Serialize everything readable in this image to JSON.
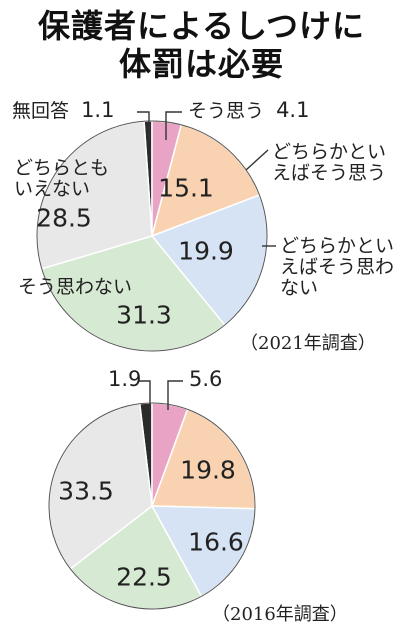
{
  "title_line1": "保護者によるしつけに",
  "title_line2": "体罰は必要",
  "labels": {
    "no_answer": "無回答",
    "agree": "そう思う",
    "somewhat_agree": "どちらかといえばそう思う",
    "somewhat_disagree": "どちらかといえばそう思わない",
    "disagree": "そう思わない",
    "neither": "どちらともいえない"
  },
  "colors": {
    "no_answer": "#2b2b2b",
    "agree": "#e9a3c4",
    "somewhat_agree": "#f9d3b1",
    "somewhat_disagree": "#d6e3f4",
    "disagree": "#d6e9d2",
    "neither": "#e8e8e8"
  },
  "chart_data": [
    {
      "type": "pie",
      "title": "（2021年調査）",
      "slices": [
        {
          "key": "no_answer",
          "value": 1.1
        },
        {
          "key": "agree",
          "value": 4.1
        },
        {
          "key": "somewhat_agree",
          "value": 15.1
        },
        {
          "key": "somewhat_disagree",
          "value": 19.9
        },
        {
          "key": "disagree",
          "value": 31.3
        },
        {
          "key": "neither",
          "value": 28.5
        }
      ]
    },
    {
      "type": "pie",
      "title": "（2016年調査）",
      "slices": [
        {
          "key": "no_answer",
          "value": 1.9
        },
        {
          "key": "agree",
          "value": 5.6
        },
        {
          "key": "somewhat_agree",
          "value": 19.8
        },
        {
          "key": "somewhat_disagree",
          "value": 16.6
        },
        {
          "key": "disagree",
          "value": 22.5
        },
        {
          "key": "neither",
          "value": 33.5
        }
      ]
    }
  ]
}
